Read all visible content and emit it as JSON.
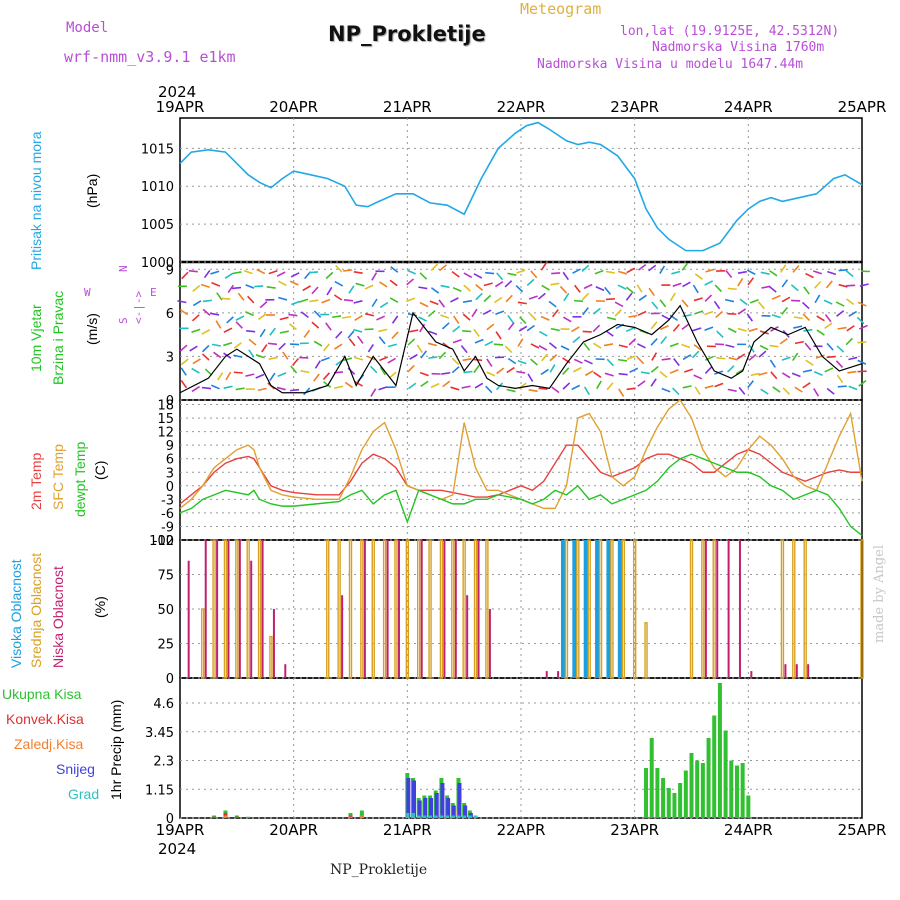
{
  "header": {
    "model_label": "Model",
    "model_name": "wrf-nmm_v3.9.1 e1km",
    "title": "NP_Prokletije",
    "subtitle": "Meteogram",
    "coords": "lon,lat (19.9125E, 42.5312N)",
    "altitude": "Nadmorska Visina 1760m",
    "model_altitude": "Nadmorska Visina u modelu 1647.44m",
    "credit": "made by Angel",
    "footer": "NP_Prokletije"
  },
  "axis": {
    "year": "2024",
    "dates": [
      "19APR",
      "20APR",
      "21APR",
      "22APR",
      "23APR",
      "24APR",
      "25APR"
    ]
  },
  "colors": {
    "pressure": "#22a8e6",
    "t2m": "#e84040",
    "sfc": "#e0a030",
    "dew": "#22c422",
    "high_cloud": "#1aa0e0",
    "mid_cloud": "#d8a020",
    "low_cloud": "#c02070",
    "total_precip": "#30c030",
    "conv_precip": "#e03030",
    "frozen_precip": "#f08030",
    "snow": "#4040e0",
    "graupel": "#30c0c0"
  },
  "panels": {
    "pressure": {
      "labels": [
        "Pritisak na nivou mora",
        "(hPa)"
      ],
      "ticks": [
        "1000",
        "1005",
        "1010",
        "1015"
      ]
    },
    "wind": {
      "labels": [
        "10m Vjetar",
        "Brzina i Pravac",
        "(m/s)"
      ],
      "ticks": [
        "0",
        "3",
        "6",
        "9"
      ],
      "compass": {
        "w": "W",
        "e": "E",
        "n": "N",
        "s": "S",
        "arrows": "<-|->"
      }
    },
    "temp": {
      "labels": [
        "2m Temp",
        "SFC Temp",
        "dewpt Temp",
        "(C)"
      ],
      "ticks": [
        "-12",
        "-9",
        "-6",
        "-3",
        "0",
        "3",
        "6",
        "9",
        "12",
        "15",
        "18"
      ]
    },
    "cloud": {
      "labels": [
        "Visoka Oblacnost",
        "Srednja Oblacnost",
        "Niska Oblacnost",
        "(%)"
      ],
      "ticks": [
        "0",
        "25",
        "50",
        "75",
        "100"
      ]
    },
    "precip": {
      "labels": [
        "Ukupna Kisa",
        "Konvek.Kisa",
        "Zaledj.Kisa",
        "Snijeg",
        "Grad",
        "1hr Precip (mm)"
      ],
      "ticks": [
        "0",
        "1.15",
        "2.3",
        "3.45",
        "4.6"
      ]
    }
  },
  "chart_data": [
    {
      "type": "line",
      "title": "",
      "ylabel": "Pritisak na nivou mora (hPa)",
      "ylim": [
        1000,
        1019
      ],
      "x": [
        0,
        0.1,
        0.25,
        0.4,
        0.5,
        0.6,
        0.7,
        0.8,
        0.9,
        1.0,
        1.15,
        1.3,
        1.45,
        1.55,
        1.65,
        1.75,
        1.9,
        2.05,
        2.2,
        2.35,
        2.5,
        2.65,
        2.8,
        2.95,
        3.05,
        3.15,
        3.25,
        3.4,
        3.5,
        3.6,
        3.7,
        3.85,
        4.0,
        4.1,
        4.2,
        4.3,
        4.45,
        4.6,
        4.75,
        4.9,
        5.0,
        5.1,
        5.2,
        5.3,
        5.45,
        5.6,
        5.75,
        5.85,
        6.0
      ],
      "series": [
        {
          "name": "",
          "values": [
            1013,
            1014.5,
            1014.8,
            1014.5,
            1013,
            1011.5,
            1010.5,
            1009.8,
            1011,
            1012,
            1011.5,
            1011,
            1010,
            1007.5,
            1007.3,
            1008,
            1009,
            1009,
            1007.8,
            1007.5,
            1006.3,
            1011,
            1015,
            1017,
            1018,
            1018.4,
            1017.5,
            1016,
            1015.5,
            1015.8,
            1015.5,
            1014,
            1011,
            1007,
            1004.5,
            1003,
            1001.5,
            1001.5,
            1002.5,
            1005.5,
            1007,
            1008,
            1008.5,
            1008,
            1008.5,
            1009,
            1011,
            1011.5,
            1010.2
          ]
        }
      ]
    },
    {
      "type": "line",
      "title": "",
      "ylabel": "10m Vjetar Brzina i Pravac (m/s)",
      "ylim": [
        0,
        9.5
      ],
      "x": [
        0,
        0.25,
        0.4,
        0.5,
        0.7,
        0.8,
        0.9,
        1.1,
        1.3,
        1.45,
        1.55,
        1.7,
        1.9,
        2.05,
        2.25,
        2.4,
        2.5,
        2.6,
        2.7,
        2.8,
        2.95,
        3.1,
        3.25,
        3.4,
        3.55,
        3.7,
        3.85,
        4.0,
        4.15,
        4.3,
        4.4,
        4.55,
        4.7,
        4.85,
        4.95,
        5.05,
        5.2,
        5.35,
        5.5,
        5.65,
        5.8,
        6.0
      ],
      "series": [
        {
          "name": "",
          "values": [
            0.5,
            1.5,
            3.0,
            3.5,
            2.5,
            1.0,
            0.5,
            0.5,
            1.0,
            3.0,
            1.0,
            3.0,
            1.0,
            6.0,
            4.0,
            3.5,
            2.0,
            3.0,
            1.5,
            1.0,
            0.8,
            1.0,
            0.8,
            2.5,
            4.0,
            4.5,
            5.2,
            5.0,
            4.5,
            5.5,
            6.5,
            4.0,
            2.0,
            1.5,
            2.0,
            4.0,
            5.0,
            4.5,
            5.0,
            3.0,
            2.0,
            2.5
          ]
        }
      ]
    },
    {
      "type": "line",
      "title": "",
      "ylabel": "(C)",
      "ylim": [
        -12,
        19
      ],
      "x": [
        0,
        0.1,
        0.2,
        0.3,
        0.4,
        0.5,
        0.6,
        0.65,
        0.7,
        0.8,
        0.9,
        1.0,
        1.2,
        1.4,
        1.5,
        1.6,
        1.7,
        1.8,
        1.9,
        2.0,
        2.1,
        2.2,
        2.3,
        2.4,
        2.5,
        2.6,
        2.7,
        2.8,
        2.9,
        3.0,
        3.1,
        3.2,
        3.3,
        3.4,
        3.5,
        3.6,
        3.7,
        3.8,
        3.9,
        4.0,
        4.1,
        4.2,
        4.3,
        4.4,
        4.5,
        4.6,
        4.7,
        4.8,
        4.9,
        5.0,
        5.1,
        5.2,
        5.3,
        5.4,
        5.5,
        5.6,
        5.7,
        5.8,
        5.9,
        6.0
      ],
      "series": [
        {
          "name": "2m Temp",
          "values": [
            -4,
            -2,
            0,
            3,
            5,
            6,
            6.5,
            6,
            4,
            0,
            -1,
            -1.5,
            -2,
            -2,
            1,
            5,
            7,
            6,
            4,
            0,
            -1,
            -1,
            -1,
            -1.5,
            -2,
            -2.5,
            -2.5,
            -2,
            -1,
            0,
            -1,
            1,
            5,
            9,
            9,
            6,
            3,
            2,
            3,
            4,
            6,
            7,
            7,
            6,
            5,
            3,
            3,
            5,
            7,
            8,
            7,
            5,
            3,
            2,
            1,
            2,
            3,
            3.5,
            3,
            3
          ]
        },
        {
          "name": "SFC Temp",
          "values": [
            -5,
            -3,
            0,
            4,
            6,
            8,
            9,
            8,
            4,
            -1,
            -2,
            -2.5,
            -3,
            -3,
            2,
            8,
            12,
            14,
            8,
            0,
            -1,
            -2,
            -3,
            -2,
            14,
            4,
            -1,
            -1,
            -2,
            -3,
            -4,
            -5,
            -5,
            0,
            15,
            16,
            12,
            2,
            0,
            2,
            8,
            13,
            17,
            19,
            15,
            8,
            4,
            2,
            4,
            8,
            11,
            9,
            6,
            2,
            0,
            -1,
            5,
            11,
            16,
            1
          ]
        },
        {
          "name": "dewpt Temp",
          "values": [
            -6,
            -5,
            -3,
            -2,
            -1,
            -1.5,
            -2,
            -1,
            -3,
            -4,
            -4.5,
            -4.5,
            -4,
            -3.5,
            -2,
            -1,
            -4,
            -2,
            -1,
            -8,
            -1,
            -2,
            -3,
            -4,
            -4,
            -3,
            -3,
            -2,
            -2.5,
            -3,
            -4,
            -3,
            -1,
            -2,
            0,
            -3,
            -2,
            -4,
            -3,
            -2,
            -1,
            1,
            4,
            6,
            7,
            6,
            5,
            4,
            3,
            3,
            2,
            0,
            -1,
            -3,
            -2,
            -1,
            -2,
            -5,
            -9,
            -11
          ]
        }
      ]
    },
    {
      "type": "bar",
      "title": "",
      "ylabel": "(%)",
      "ylim": [
        0,
        100
      ],
      "x": [
        0.05,
        0.2,
        0.3,
        0.4,
        0.5,
        0.6,
        0.7,
        0.8,
        0.9,
        1.3,
        1.4,
        1.5,
        1.6,
        1.7,
        1.8,
        1.9,
        2.0,
        2.1,
        2.2,
        2.3,
        2.4,
        2.5,
        2.6,
        2.7,
        3.1,
        3.2,
        3.3,
        3.4,
        3.5,
        3.6,
        3.7,
        3.8,
        3.9,
        4.0,
        4.1,
        4.3,
        4.5,
        4.6,
        4.7,
        4.8,
        4.9,
        5.0,
        5.1,
        5.3,
        5.4,
        5.5,
        5.7,
        6.0
      ],
      "series": [
        {
          "name": "Visoka Oblacnost",
          "values": [
            0,
            0,
            0,
            0,
            0,
            0,
            0,
            0,
            0,
            0,
            0,
            0,
            0,
            0,
            0,
            0,
            0,
            0,
            0,
            0,
            0,
            0,
            0,
            0,
            0,
            0,
            0,
            100,
            100,
            100,
            100,
            100,
            100,
            0,
            0,
            0,
            0,
            0,
            0,
            0,
            0,
            0,
            0,
            0,
            0,
            0,
            0,
            0
          ]
        },
        {
          "name": "Srednja Oblacnost",
          "values": [
            0,
            50,
            100,
            100,
            100,
            100,
            100,
            30,
            0,
            100,
            100,
            100,
            100,
            100,
            100,
            100,
            100,
            100,
            100,
            100,
            100,
            100,
            100,
            100,
            0,
            0,
            0,
            100,
            100,
            100,
            100,
            100,
            100,
            100,
            40,
            0,
            100,
            100,
            100,
            0,
            0,
            0,
            0,
            100,
            100,
            100,
            0,
            100
          ]
        },
        {
          "name": "Niska Oblacnost",
          "values": [
            85,
            100,
            100,
            100,
            100,
            85,
            100,
            50,
            10,
            0,
            60,
            0,
            100,
            0,
            100,
            100,
            0,
            100,
            0,
            100,
            100,
            60,
            100,
            50,
            0,
            5,
            5,
            0,
            0,
            0,
            0,
            0,
            0,
            0,
            0,
            0,
            0,
            100,
            100,
            100,
            100,
            5,
            0,
            10,
            10,
            10,
            0,
            0
          ]
        }
      ]
    },
    {
      "type": "bar",
      "title": "",
      "ylabel": "1hr Precip (mm)",
      "ylim": [
        0,
        5.6
      ],
      "x": [
        0.3,
        0.4,
        0.5,
        0.6,
        1.5,
        1.6,
        2.0,
        2.05,
        2.1,
        2.15,
        2.2,
        2.25,
        2.3,
        2.35,
        2.4,
        2.45,
        2.5,
        2.55,
        2.6,
        4.1,
        4.15,
        4.2,
        4.25,
        4.3,
        4.35,
        4.4,
        4.45,
        4.5,
        4.55,
        4.6,
        4.65,
        4.7,
        4.75,
        4.8,
        4.85,
        4.9,
        4.95,
        5.0
      ],
      "series": [
        {
          "name": "Ukupna Kisa",
          "values": [
            0.1,
            0.3,
            0.1,
            0.05,
            0.2,
            0.3,
            1.8,
            1.6,
            0.8,
            0.9,
            0.9,
            1.1,
            1.6,
            0.9,
            0.6,
            1.6,
            0.6,
            0.3,
            0.1,
            2.0,
            3.2,
            2.0,
            1.6,
            1.2,
            1.0,
            1.4,
            1.9,
            2.6,
            2.3,
            2.2,
            3.2,
            4.1,
            5.4,
            3.5,
            2.3,
            2.1,
            2.2,
            0.9
          ]
        },
        {
          "name": "Konvek.Kisa",
          "values": [
            0.05,
            0.2,
            0.05,
            0,
            0.1,
            0.1,
            0,
            0,
            0,
            0,
            0,
            0,
            0.1,
            0,
            0,
            0.1,
            0,
            0,
            0,
            0,
            0,
            0,
            0,
            0,
            0,
            0,
            0,
            0,
            0,
            0,
            0,
            0,
            0,
            0,
            0,
            0,
            0,
            0
          ]
        },
        {
          "name": "Zaledj.Kisa",
          "values": [
            0,
            0.1,
            0,
            0,
            0.05,
            0.1,
            0,
            0,
            0,
            0,
            0,
            0,
            0.2,
            0,
            0,
            0.3,
            0,
            0,
            0,
            0,
            0,
            0,
            0,
            0,
            0,
            0,
            0,
            0,
            0,
            0,
            0,
            0,
            0,
            0,
            0,
            0,
            0,
            0
          ]
        },
        {
          "name": "Snijeg",
          "values": [
            0,
            0,
            0,
            0,
            0,
            0,
            1.6,
            1.5,
            0.7,
            0.8,
            0.8,
            1.0,
            1.4,
            0.8,
            0.5,
            1.4,
            0.5,
            0.2,
            0,
            0,
            0,
            0,
            0,
            0,
            0,
            0,
            0,
            0,
            0,
            0,
            0,
            0,
            0,
            0,
            0,
            0,
            0,
            0
          ]
        },
        {
          "name": "Grad",
          "values": [
            0,
            0,
            0,
            0,
            0,
            0,
            0.2,
            0.2,
            0.1,
            0.1,
            0.1,
            0.1,
            0.1,
            0.1,
            0.1,
            0.1,
            0.1,
            0.1,
            0.1,
            0,
            0,
            0,
            0,
            0,
            0,
            0,
            0,
            0,
            0,
            0,
            0,
            0,
            0,
            0,
            0,
            0,
            0,
            0
          ]
        }
      ]
    }
  ]
}
